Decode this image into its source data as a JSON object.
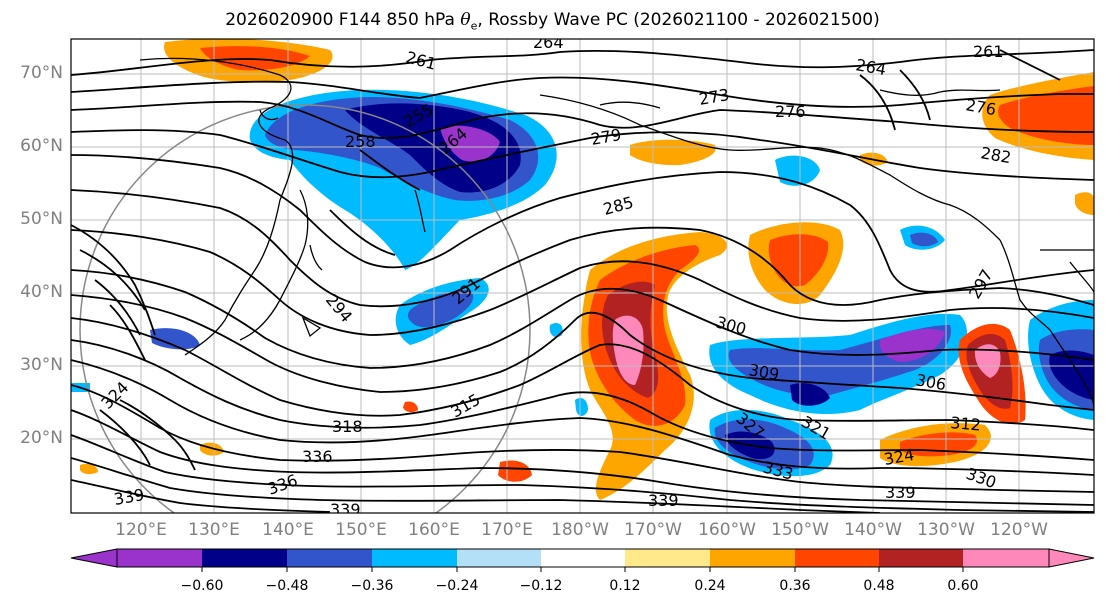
{
  "figure": {
    "title_prefix": "2026020900 F144 850 hPa ",
    "title_symbol": "θ",
    "title_subscript": "e",
    "title_suffix": ", Rossby Wave PC (2026021100 - 2026021500)"
  },
  "map": {
    "latitude_labels": [
      "70°N",
      "60°N",
      "50°N",
      "40°N",
      "30°N",
      "20°N"
    ],
    "longitude_labels": [
      "120°E",
      "130°E",
      "140°E",
      "150°E",
      "160°E",
      "170°E",
      "180°W",
      "170°W",
      "160°W",
      "150°W",
      "140°W",
      "130°W",
      "120°W"
    ],
    "contour_labels": [
      "264",
      "261",
      "261",
      "264",
      "273",
      "276",
      "276",
      "279",
      "282",
      "258",
      "255",
      "264",
      "285",
      "291",
      "294",
      "300",
      "309",
      "306",
      "312",
      "315",
      "318",
      "321",
      "324",
      "324",
      "327",
      "330",
      "333",
      "336",
      "336",
      "339",
      "339",
      "339",
      "339",
      "297"
    ]
  },
  "colorbar": {
    "colors": [
      "#9933cc",
      "#000088",
      "#3355cc",
      "#00bbff",
      "#b3e0f7",
      "#ffffff",
      "#ffe98a",
      "#ffa500",
      "#ff4500",
      "#b22222",
      "#ff88bb"
    ],
    "tick_labels": [
      "−0.60",
      "−0.48",
      "−0.36",
      "−0.24",
      "−0.12",
      "0.12",
      "0.24",
      "0.36",
      "0.48",
      "0.60"
    ]
  },
  "chart_data": {
    "type": "contour_map",
    "title": "2026020900 F144 850 hPa θe, Rossby Wave PC (2026021100 - 2026021500)",
    "variable_contours": "850 hPa equivalent potential temperature (K)",
    "variable_shaded": "Rossby Wave PC",
    "contour_values": [
      255,
      258,
      261,
      264,
      273,
      276,
      279,
      282,
      285,
      291,
      294,
      297,
      300,
      306,
      309,
      312,
      315,
      318,
      321,
      324,
      327,
      330,
      333,
      336,
      339
    ],
    "shading_levels": [
      -0.6,
      -0.48,
      -0.36,
      -0.24,
      -0.12,
      0.12,
      0.24,
      0.36,
      0.48,
      0.6
    ],
    "lat_range": [
      10,
      75
    ],
    "lon_range": [
      "115°E",
      "115°W"
    ]
  }
}
